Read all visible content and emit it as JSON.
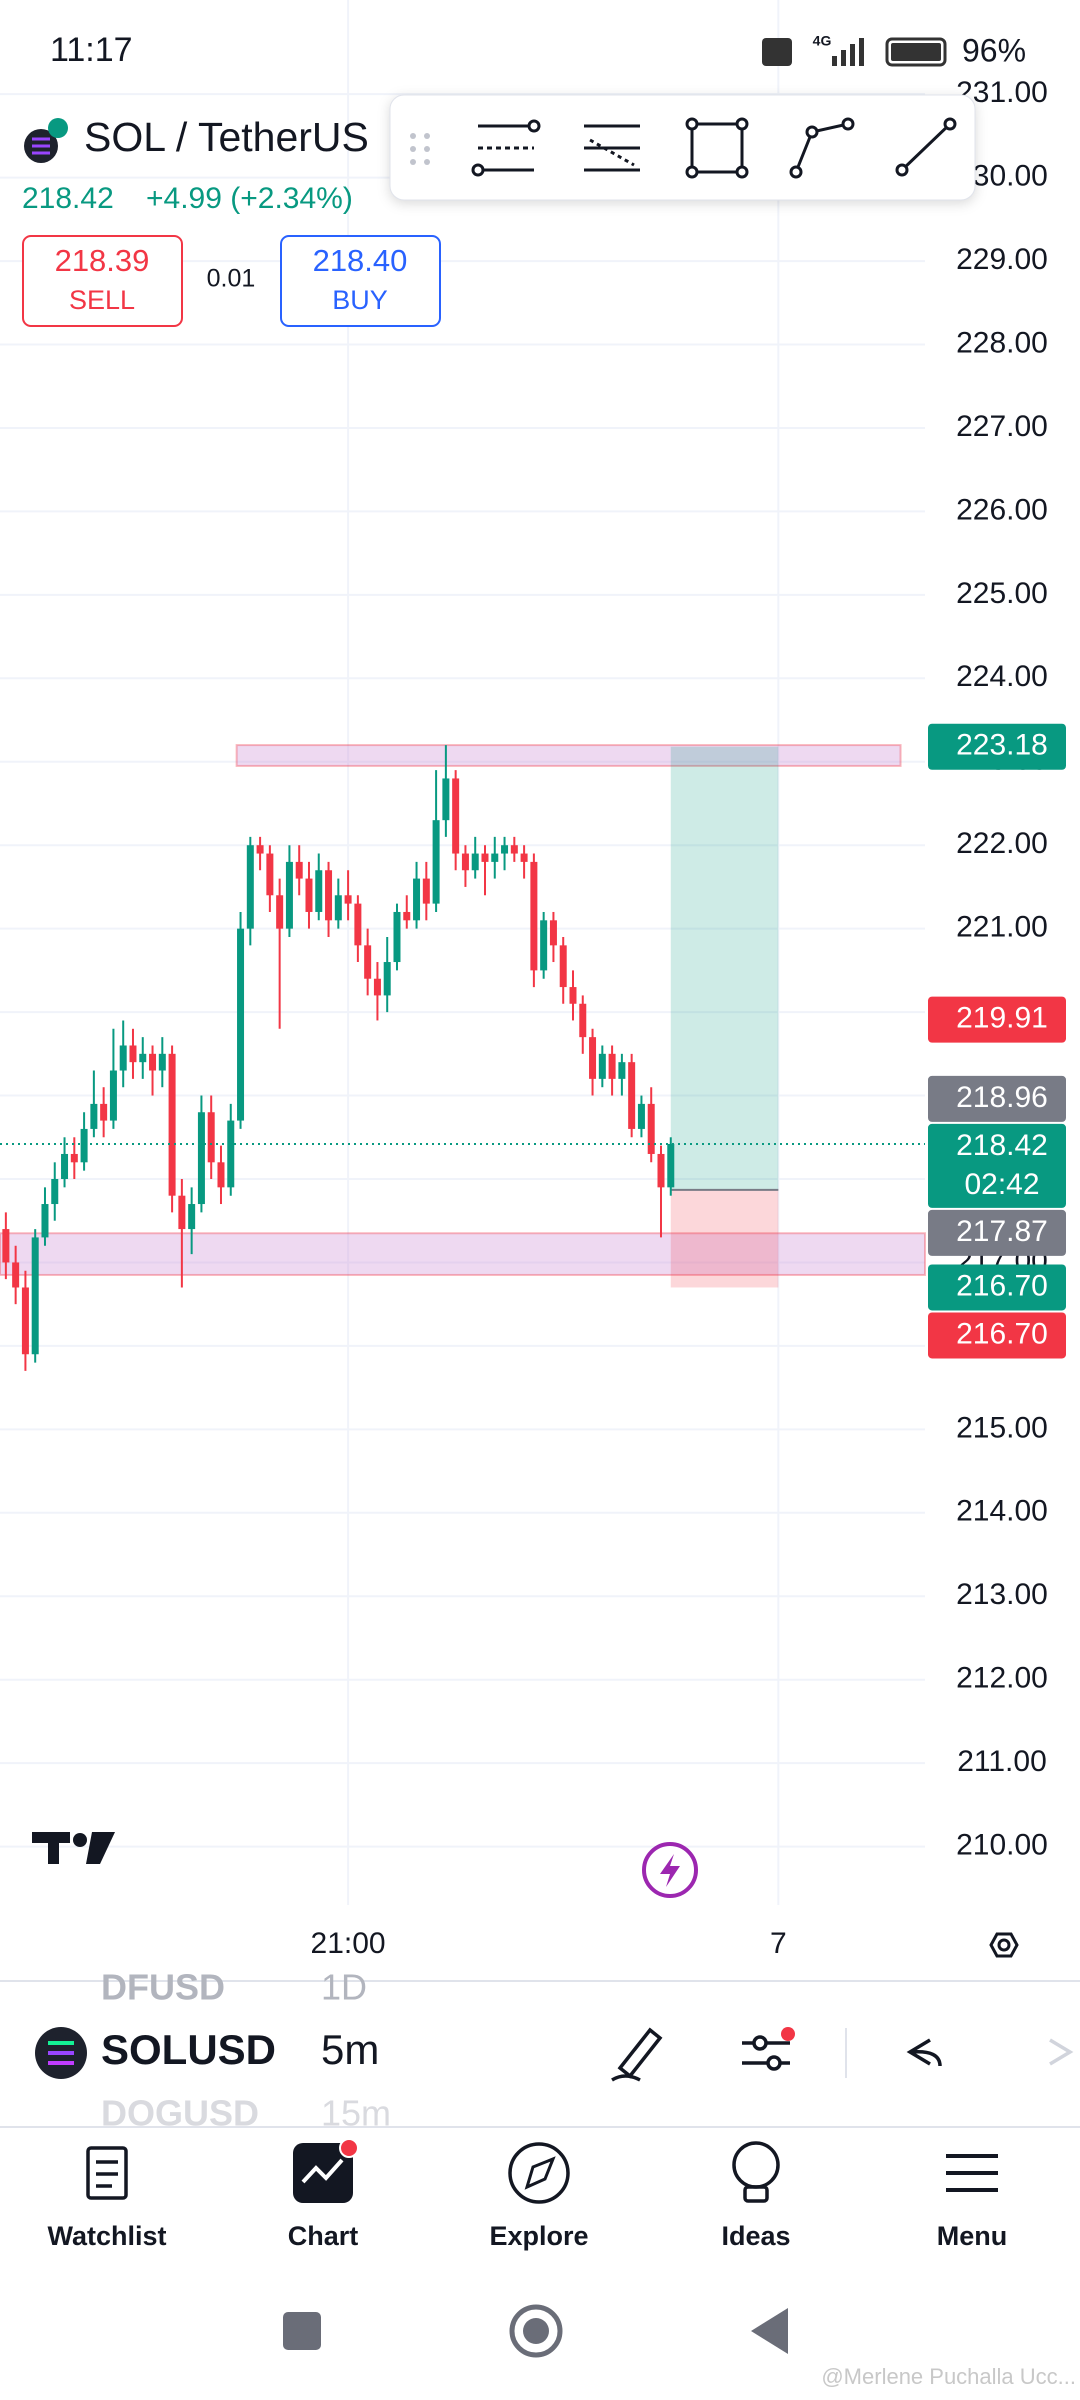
{
  "status_bar": {
    "time": "11:17",
    "network": "4G",
    "battery": "96%"
  },
  "header": {
    "symbol": "SOL / TetherUS",
    "price": "218.42",
    "change": "+4.99 (+2.34%)",
    "sell_price": "218.39",
    "sell_label": "SELL",
    "spread": "0.01",
    "buy_price": "218.40",
    "buy_label": "BUY"
  },
  "chart_data": {
    "type": "candlestick",
    "up_color": "#089981",
    "down_color": "#f23645",
    "candles": [
      [
        217.4,
        217.6,
        216.8,
        217.0
      ],
      [
        217.0,
        217.2,
        216.5,
        216.7
      ],
      [
        216.7,
        216.9,
        215.7,
        215.9
      ],
      [
        215.9,
        217.4,
        215.8,
        217.3
      ],
      [
        217.3,
        217.9,
        217.2,
        217.7
      ],
      [
        217.7,
        218.2,
        217.5,
        218.0
      ],
      [
        218.0,
        218.5,
        217.9,
        218.3
      ],
      [
        218.3,
        218.5,
        218.0,
        218.2
      ],
      [
        218.2,
        218.8,
        218.1,
        218.6
      ],
      [
        218.6,
        219.3,
        218.5,
        218.9
      ],
      [
        218.9,
        219.1,
        218.5,
        218.7
      ],
      [
        218.7,
        219.8,
        218.6,
        219.3
      ],
      [
        219.3,
        219.9,
        219.1,
        219.6
      ],
      [
        219.6,
        219.8,
        219.2,
        219.4
      ],
      [
        219.4,
        219.7,
        219.2,
        219.5
      ],
      [
        219.5,
        219.6,
        219.0,
        219.3
      ],
      [
        219.3,
        219.7,
        219.1,
        219.5
      ],
      [
        219.5,
        219.6,
        217.6,
        217.8
      ],
      [
        217.8,
        218.0,
        216.7,
        217.4
      ],
      [
        217.4,
        217.9,
        217.1,
        217.7
      ],
      [
        217.7,
        219.0,
        217.6,
        218.8
      ],
      [
        218.8,
        219.0,
        218.0,
        218.2
      ],
      [
        218.2,
        218.4,
        217.7,
        217.9
      ],
      [
        217.9,
        218.9,
        217.8,
        218.7
      ],
      [
        218.7,
        221.2,
        218.6,
        221.0
      ],
      [
        221.0,
        222.1,
        220.8,
        222.0
      ],
      [
        222.0,
        222.1,
        221.7,
        221.9
      ],
      [
        221.9,
        222.0,
        221.2,
        221.4
      ],
      [
        221.4,
        221.6,
        219.8,
        221.0
      ],
      [
        221.0,
        222.0,
        220.9,
        221.8
      ],
      [
        221.8,
        222.0,
        221.4,
        221.6
      ],
      [
        221.6,
        221.8,
        221.0,
        221.2
      ],
      [
        221.2,
        221.9,
        221.1,
        221.7
      ],
      [
        221.7,
        221.8,
        220.9,
        221.1
      ],
      [
        221.1,
        221.6,
        221.0,
        221.4
      ],
      [
        221.4,
        221.7,
        221.1,
        221.3
      ],
      [
        221.3,
        221.4,
        220.6,
        220.8
      ],
      [
        220.8,
        221.0,
        220.2,
        220.4
      ],
      [
        220.4,
        220.6,
        219.9,
        220.2
      ],
      [
        220.2,
        220.9,
        220.0,
        220.6
      ],
      [
        220.6,
        221.3,
        220.5,
        221.2
      ],
      [
        221.2,
        221.4,
        221.0,
        221.1
      ],
      [
        221.1,
        221.8,
        221.0,
        221.6
      ],
      [
        221.6,
        221.8,
        221.1,
        221.3
      ],
      [
        221.3,
        222.9,
        221.2,
        222.3
      ],
      [
        222.3,
        223.2,
        222.1,
        222.8
      ],
      [
        222.8,
        222.9,
        221.7,
        221.9
      ],
      [
        221.9,
        222.0,
        221.5,
        221.7
      ],
      [
        221.7,
        222.1,
        221.6,
        221.9
      ],
      [
        221.9,
        222.0,
        221.4,
        221.8
      ],
      [
        221.8,
        222.1,
        221.6,
        221.9
      ],
      [
        221.9,
        222.1,
        221.7,
        222.0
      ],
      [
        222.0,
        222.1,
        221.8,
        221.9
      ],
      [
        221.9,
        222.0,
        221.6,
        221.8
      ],
      [
        221.8,
        221.9,
        220.3,
        220.5
      ],
      [
        220.5,
        221.2,
        220.4,
        221.1
      ],
      [
        221.1,
        221.2,
        220.6,
        220.8
      ],
      [
        220.8,
        220.9,
        220.1,
        220.3
      ],
      [
        220.3,
        220.5,
        219.9,
        220.1
      ],
      [
        220.1,
        220.2,
        219.5,
        219.7
      ],
      [
        219.7,
        219.8,
        219.0,
        219.2
      ],
      [
        219.2,
        219.6,
        219.1,
        219.5
      ],
      [
        219.5,
        219.6,
        219.0,
        219.2
      ],
      [
        219.2,
        219.5,
        219.0,
        219.4
      ],
      [
        219.4,
        219.5,
        218.5,
        218.6
      ],
      [
        218.6,
        219.0,
        218.5,
        218.9
      ],
      [
        218.9,
        219.1,
        218.2,
        218.3
      ],
      [
        218.3,
        218.4,
        217.3,
        217.9
      ],
      [
        217.9,
        218.5,
        217.8,
        218.42
      ]
    ],
    "xlim": [
      -0.6,
      94
    ],
    "xticks": [
      {
        "value": 35,
        "label": "21:00"
      },
      {
        "value": 79,
        "label": "7"
      }
    ],
    "ylim": [
      209.3,
      231.05
    ],
    "yticks": [
      {
        "value": 210,
        "label": "210.00"
      },
      {
        "value": 211,
        "label": "211.00"
      },
      {
        "value": 212,
        "label": "212.00"
      },
      {
        "value": 213,
        "label": "213.00"
      },
      {
        "value": 214,
        "label": "214.00"
      },
      {
        "value": 215,
        "label": "215.00"
      },
      {
        "value": 216,
        "label": "216.00"
      },
      {
        "value": 217,
        "label": "217.00"
      },
      {
        "value": 218,
        "label": "218.00"
      },
      {
        "value": 219,
        "label": "219.00"
      },
      {
        "value": 220,
        "label": "220.00"
      },
      {
        "value": 221,
        "label": "221.00"
      },
      {
        "value": 222,
        "label": "222.00"
      },
      {
        "value": 223,
        "label": "223.00"
      },
      {
        "value": 224,
        "label": "224.00"
      },
      {
        "value": 225,
        "label": "225.00"
      },
      {
        "value": 226,
        "label": "226.00"
      },
      {
        "value": 227,
        "label": "227.00"
      },
      {
        "value": 228,
        "label": "228.00"
      },
      {
        "value": 229,
        "label": "229.00"
      },
      {
        "value": 230,
        "label": "230.00"
      },
      {
        "value": 231,
        "label": "231.00"
      }
    ],
    "grid": true,
    "last_price": 218.42,
    "zones": [
      {
        "from": 23.6,
        "to": 91.5,
        "top": 223.2,
        "bottom": 222.95
      },
      {
        "from": -0.6,
        "to": 94,
        "top": 217.35,
        "bottom": 216.85
      }
    ],
    "position": {
      "from": 68,
      "to": 79,
      "target": 223.18,
      "entry": 217.87,
      "stop": 216.7
    },
    "price_labels": [
      {
        "value": 223.18,
        "color": "#089981"
      },
      {
        "value": 219.91,
        "color": "#f23645"
      },
      {
        "value": 218.96,
        "color": "#787b86"
      },
      {
        "value": 218.42,
        "color": "#089981",
        "countdown": "02:42"
      },
      {
        "value": 217.87,
        "color": "#787b86"
      },
      {
        "value": 216.7,
        "label": "216.70",
        "color": "#089981"
      },
      {
        "value": 216.7,
        "label": "216.70",
        "color": "#f23645"
      }
    ]
  },
  "symbol_bar": {
    "prev_symbol": "DFUSD",
    "prev_interval": "1D",
    "symbol": "SOLUSD",
    "interval": "5m",
    "next_symbol": "DOGUSD",
    "next_interval": "15m"
  },
  "nav": [
    "Watchlist",
    "Chart",
    "Explore",
    "Ideas",
    "Menu"
  ],
  "watermark": "@Merlene Puchalla Ucc..."
}
